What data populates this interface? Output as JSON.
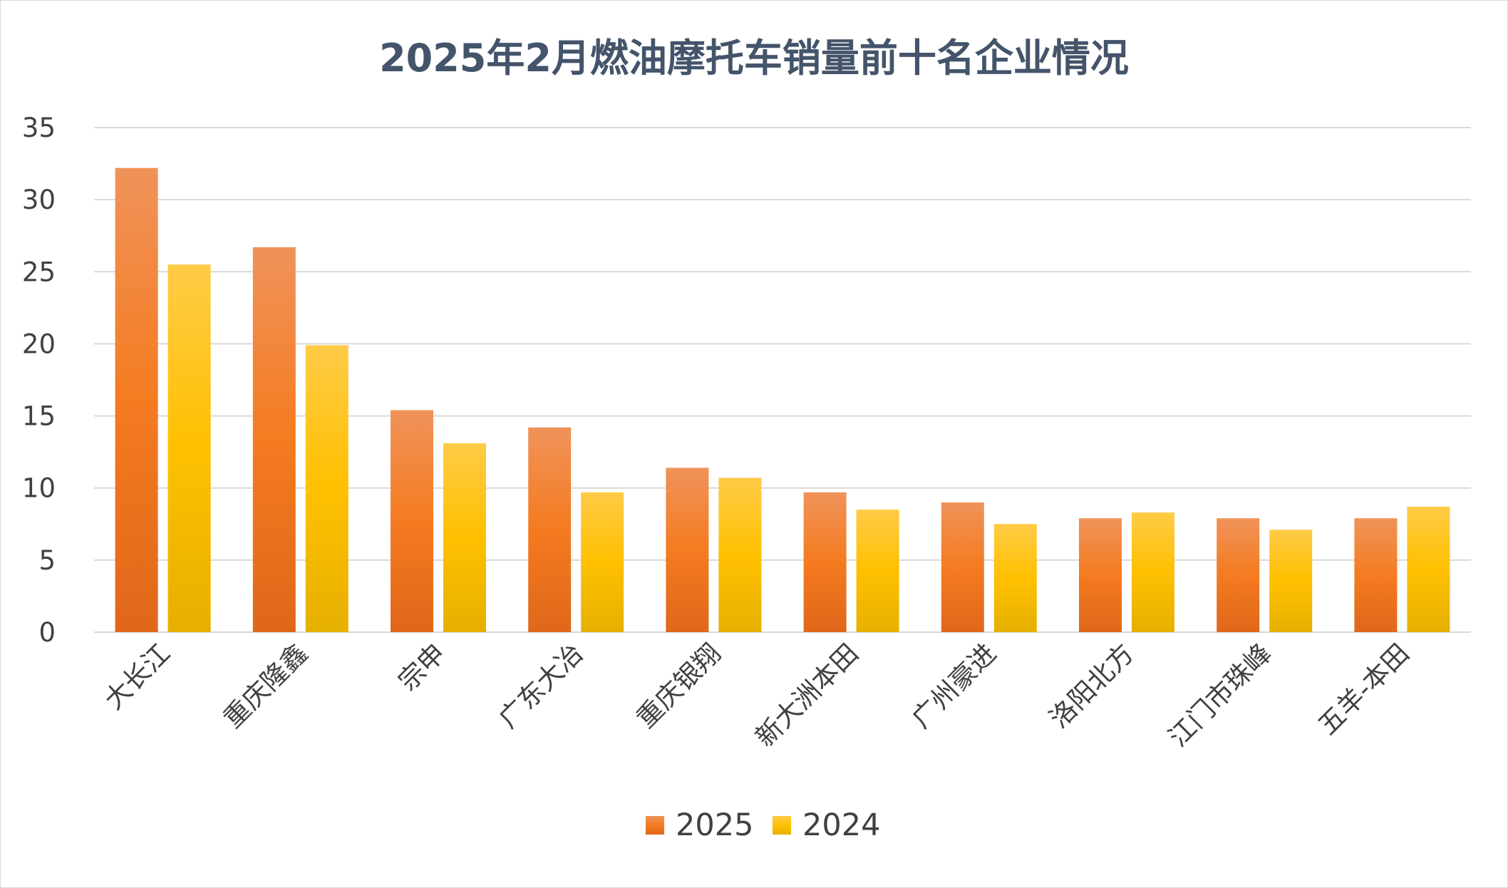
{
  "chart_data": {
    "type": "bar",
    "title": "2025年2月燃油摩托车销量前十名企业情况",
    "xlabel": "",
    "ylabel": "",
    "ylim": [
      0,
      35
    ],
    "yticks": [
      0,
      5,
      10,
      15,
      20,
      25,
      30,
      35
    ],
    "grid": true,
    "legend_position": "bottom",
    "categories": [
      "大长江",
      "重庆隆鑫",
      "宗申",
      "广东大冶",
      "重庆银翔",
      "新大洲本田",
      "广州豪进",
      "洛阳北方",
      "江门市珠峰",
      "五羊-本田"
    ],
    "series": [
      {
        "name": "2025",
        "color": "#f07a2a",
        "values": [
          32.2,
          26.7,
          15.4,
          14.2,
          11.4,
          9.7,
          9.0,
          7.9,
          7.9,
          7.9
        ]
      },
      {
        "name": "2024",
        "color": "#ffc000",
        "values": [
          25.5,
          19.9,
          13.1,
          9.7,
          10.7,
          8.5,
          7.5,
          8.3,
          7.1,
          8.7
        ]
      }
    ]
  }
}
